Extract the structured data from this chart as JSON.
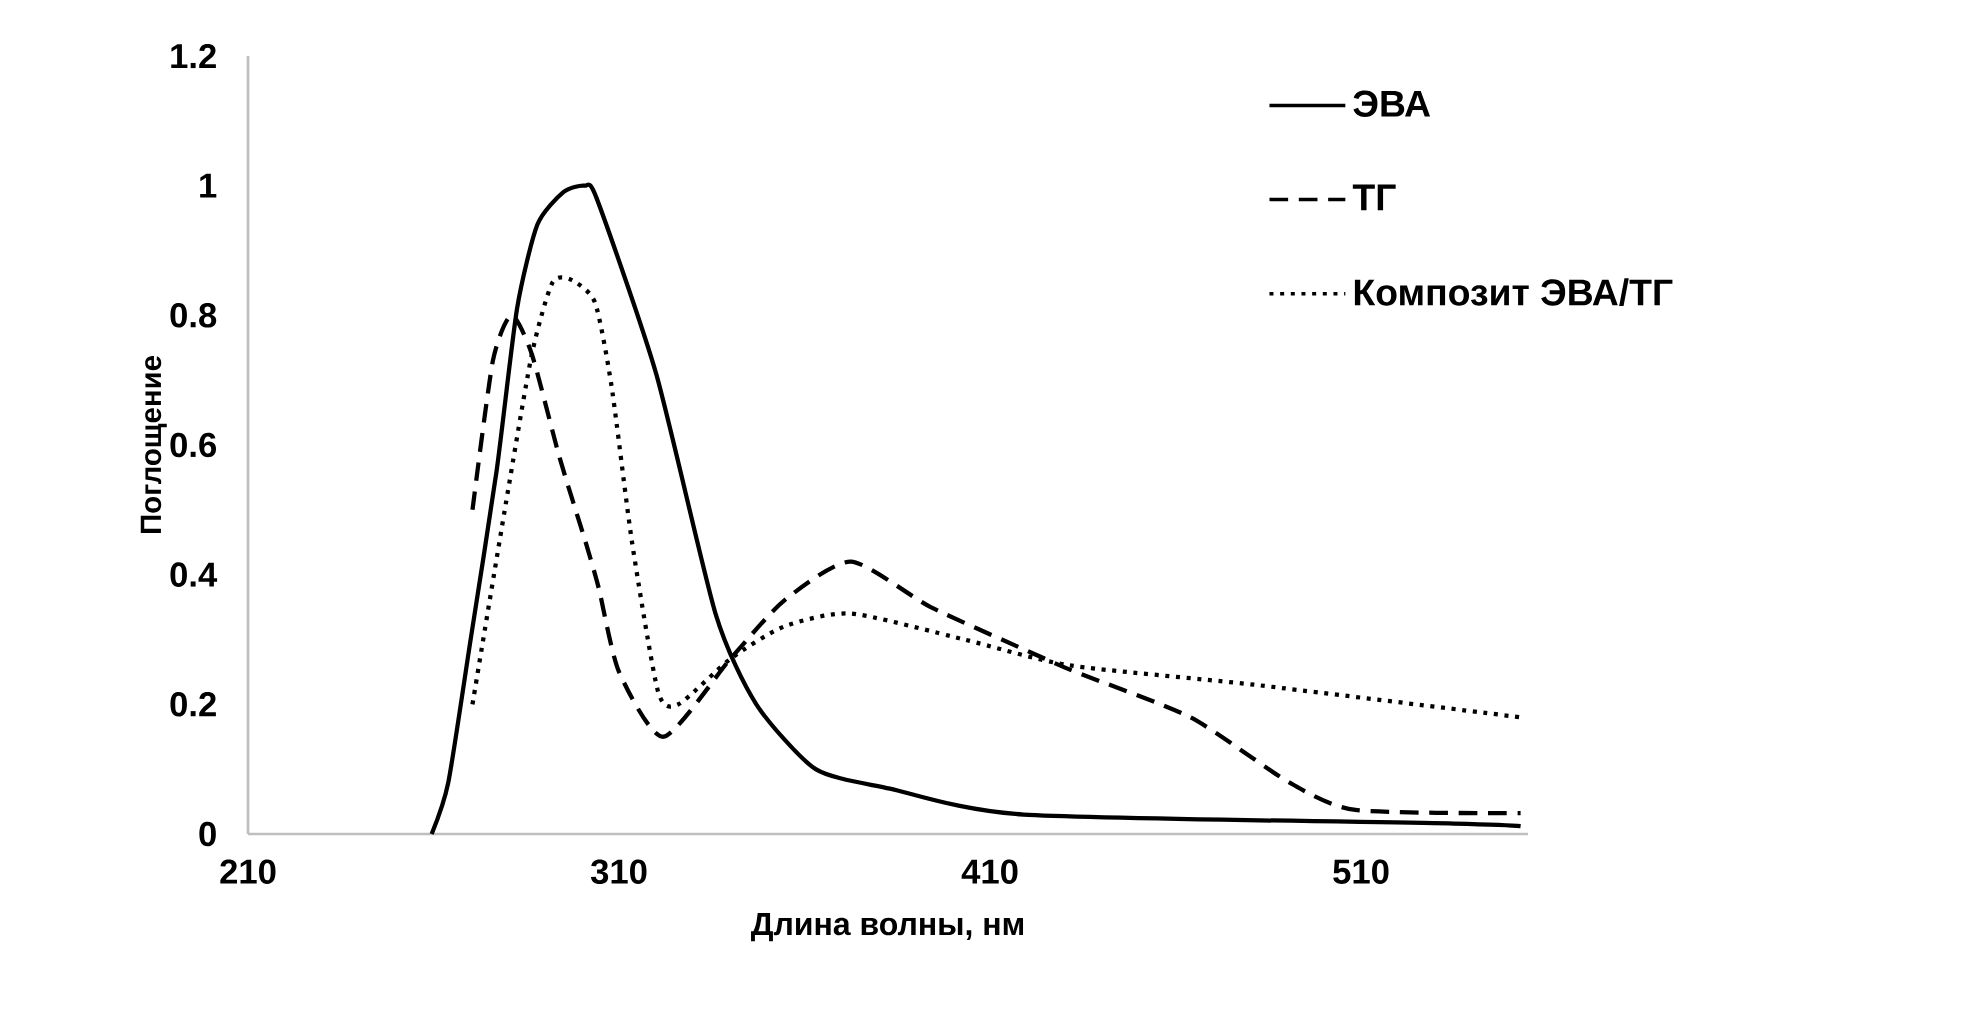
{
  "chart_data": {
    "type": "line",
    "xlabel": "Длина волны, нм",
    "ylabel": "Поглощение",
    "xlim": [
      210,
      555
    ],
    "xticks": [
      210,
      310,
      410,
      510
    ],
    "ylim": [
      0,
      1.2
    ],
    "yticks": [
      0,
      0.2,
      0.4,
      0.6,
      0.8,
      1,
      1.2
    ],
    "grid": false,
    "legend": "top right",
    "marker": "none",
    "series": [
      {
        "name": "ЭВА",
        "color": "#000000",
        "line_style": "solid",
        "x": [
          259.5,
          264,
          270,
          277,
          282.5,
          288,
          295,
          300.7,
          304,
          320,
          336,
          347,
          363,
          383,
          419,
          535,
          553
        ],
        "values": [
          0,
          0.08,
          0.3,
          0.56,
          0.81,
          0.94,
          0.99,
          1.0,
          0.98,
          0.71,
          0.34,
          0.2,
          0.1,
          0.07,
          0.03,
          0.016,
          0.012
        ]
      },
      {
        "name": "ТГ",
        "color": "#000000",
        "line_style": "dashed",
        "x": [
          270.5,
          276,
          281,
          286.5,
          294,
          301,
          304.5,
          310,
          322,
          340,
          354.5,
          372.5,
          394,
          421,
          433,
          464,
          490.5,
          508.5,
          553
        ],
        "values": [
          0.5,
          0.73,
          0.8,
          0.74,
          0.58,
          0.45,
          0.38,
          0.25,
          0.15,
          0.27,
          0.36,
          0.42,
          0.35,
          0.28,
          0.25,
          0.18,
          0.08,
          0.037,
          0.032
        ]
      },
      {
        "name": "Композит ЭВА/ТГ",
        "color": "#000000",
        "line_style": "dotted",
        "x": [
          270.5,
          279.5,
          286.5,
          292,
          297,
          303.5,
          308,
          313.5,
          320.5,
          326,
          340,
          354.5,
          372.5,
          403,
          431.5,
          481.5,
          553
        ],
        "values": [
          0.2,
          0.51,
          0.74,
          0.85,
          0.855,
          0.82,
          0.69,
          0.45,
          0.22,
          0.2,
          0.27,
          0.32,
          0.34,
          0.3,
          0.26,
          0.23,
          0.18
        ]
      }
    ]
  }
}
